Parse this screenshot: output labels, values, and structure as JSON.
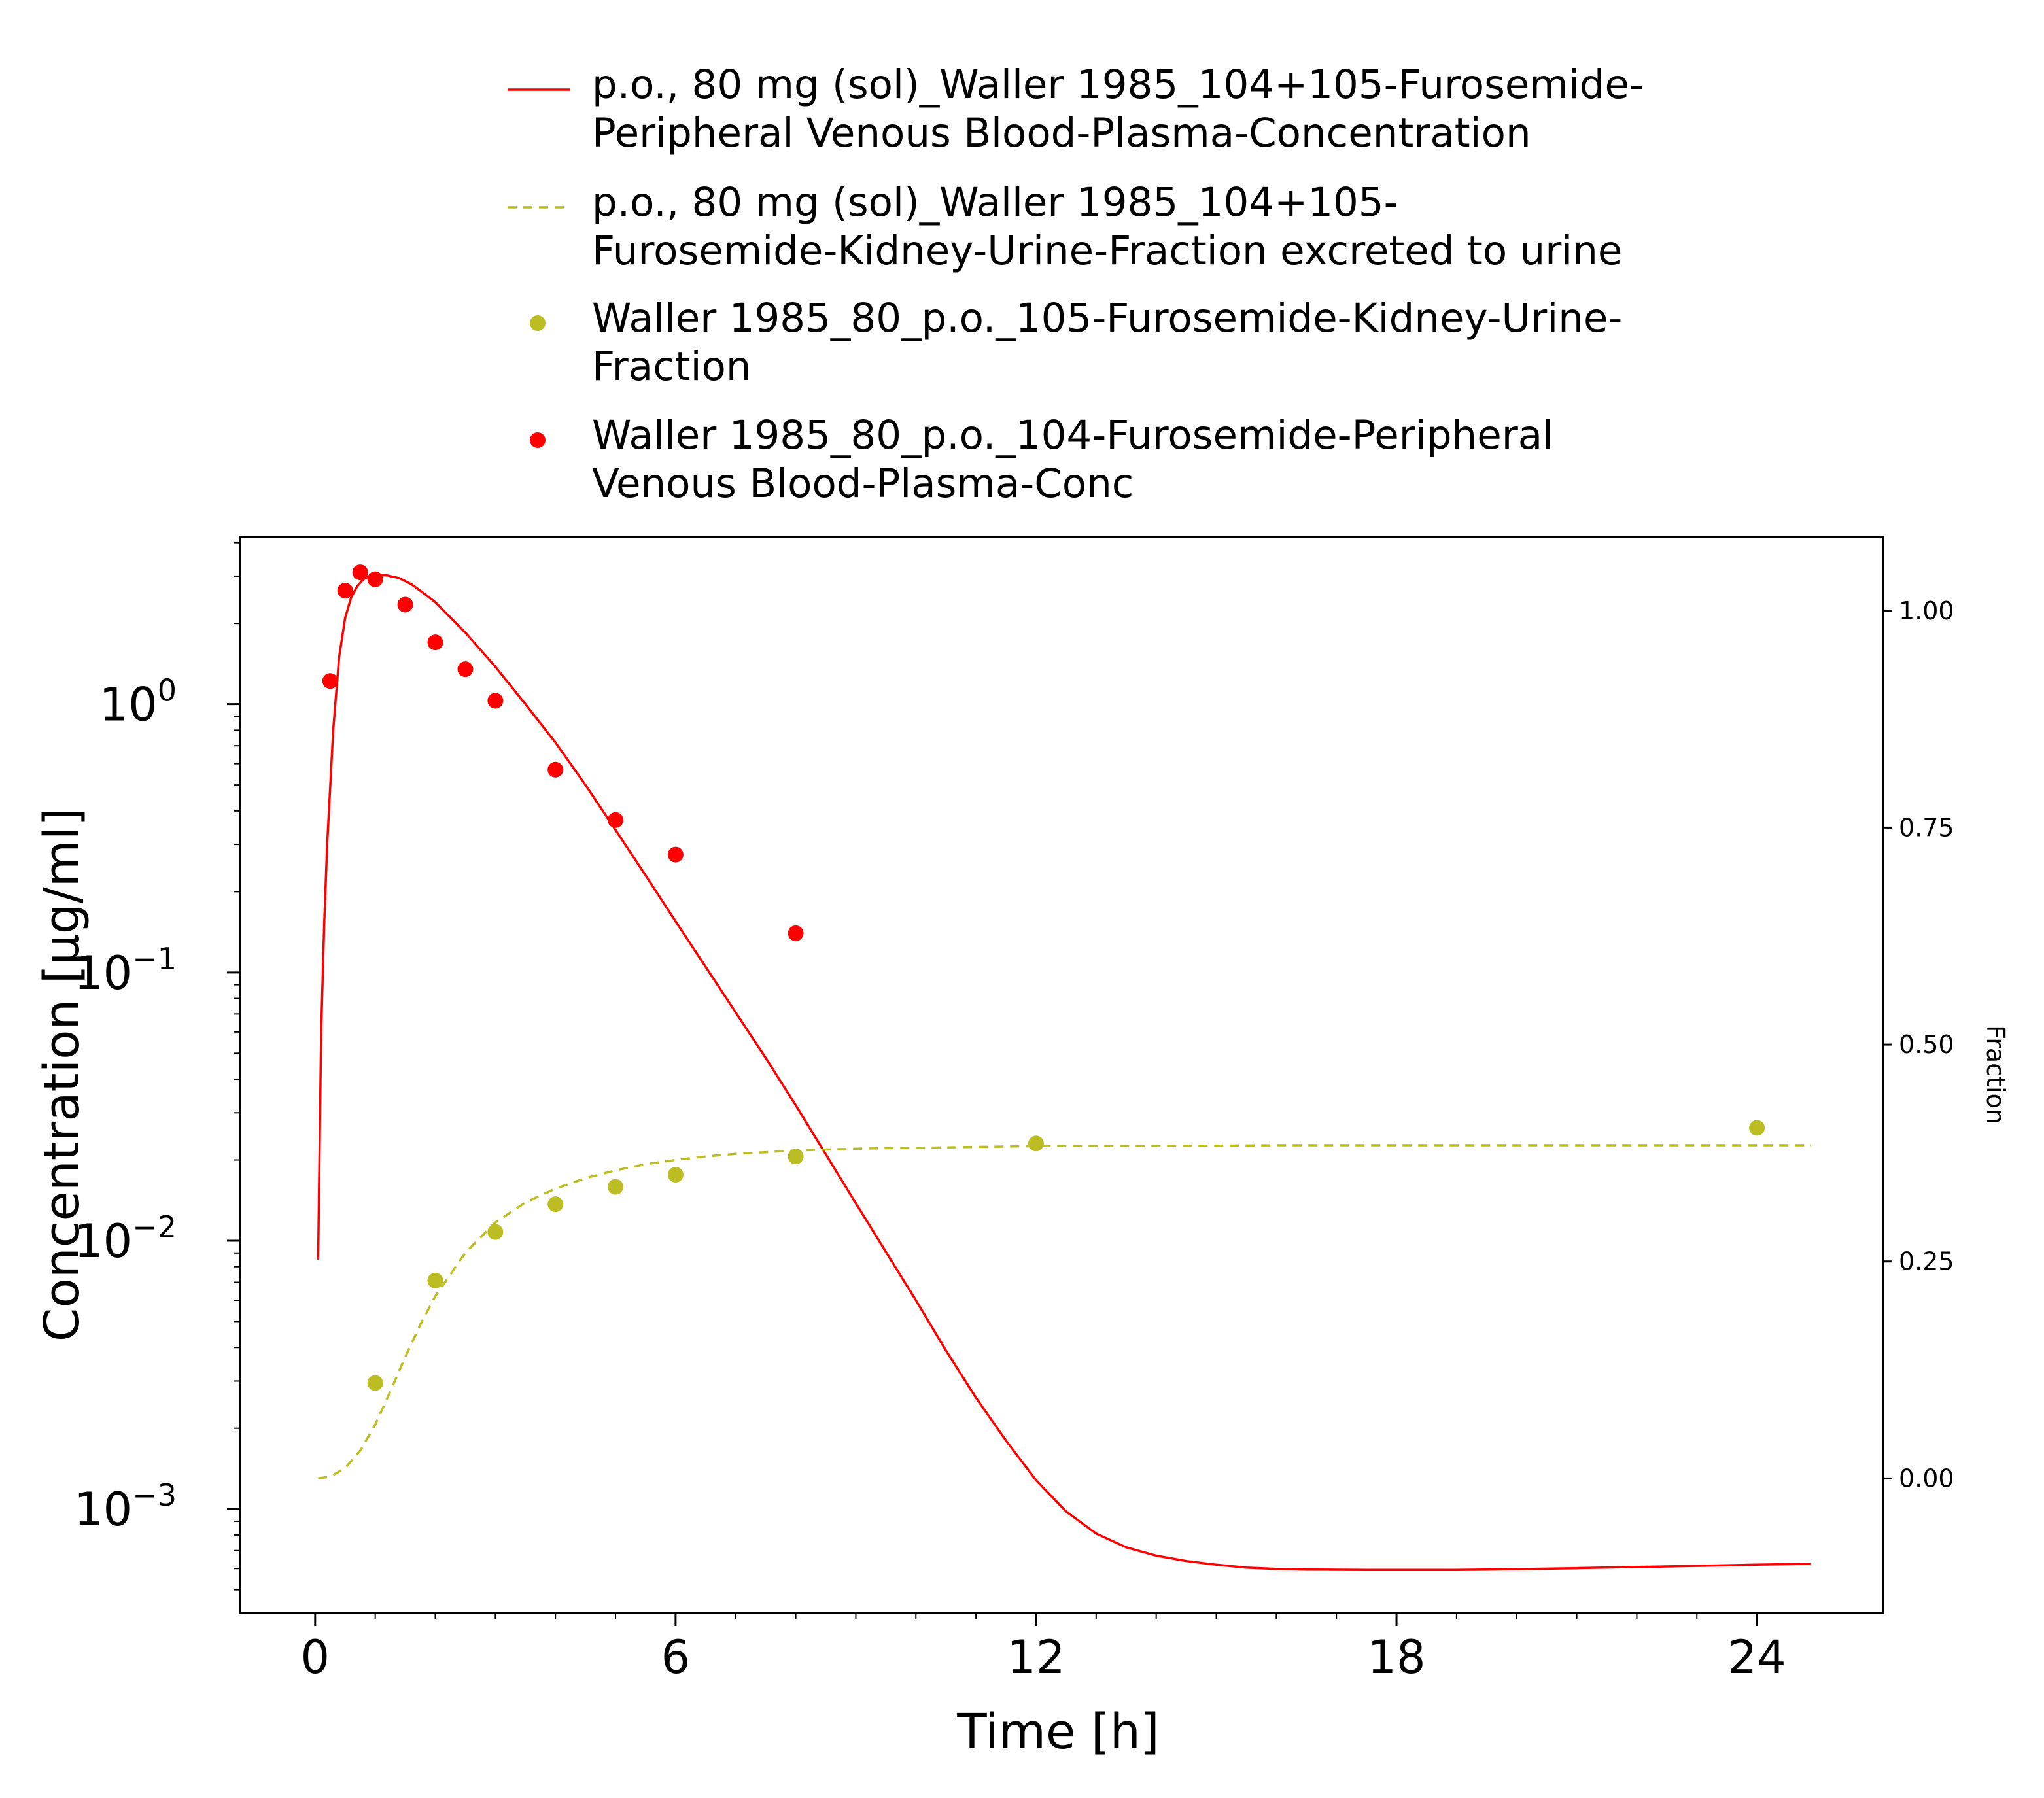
{
  "chart_data": {
    "type": "line",
    "xlabel": "Time [h]",
    "ylabel": "Concentration [µg/ml]",
    "y2label": "Fraction",
    "xlim": [
      -1.25,
      26.1
    ],
    "ylim": [
      0.00041,
      4.2
    ],
    "yscale": "log",
    "y2lim": [
      -0.155,
      1.085
    ],
    "y2scale": "linear",
    "grid": false,
    "legend_position": "top-center",
    "x_ticks": [
      {
        "value": 0,
        "label": "0"
      },
      {
        "value": 6,
        "label": "6"
      },
      {
        "value": 12,
        "label": "12"
      },
      {
        "value": 18,
        "label": "18"
      },
      {
        "value": 24,
        "label": "24"
      }
    ],
    "y_ticks": [
      {
        "value": 1,
        "base": "10",
        "exp": "0"
      },
      {
        "value": 0.1,
        "base": "10",
        "exp": "−1"
      },
      {
        "value": 0.01,
        "base": "10",
        "exp": "−2"
      },
      {
        "value": 0.001,
        "base": "10",
        "exp": "−3"
      }
    ],
    "y2_ticks": [
      {
        "value": 0.0,
        "label": "0.00"
      },
      {
        "value": 0.25,
        "label": "0.25"
      },
      {
        "value": 0.5,
        "label": "0.50"
      },
      {
        "value": 0.75,
        "label": "0.75"
      },
      {
        "value": 1.0,
        "label": "1.00"
      }
    ],
    "series": [
      {
        "name": "p.o., 80 mg (sol)_Waller 1985_104+105-Furosemide-Peripheral Venous Blood-Plasma-Concentration",
        "legend_lines": [
          "p.o., 80 mg (sol)_Waller 1985_104+105-Furosemide-",
          "Peripheral Venous Blood-Plasma-Concentration"
        ],
        "kind": "line",
        "style": "solid",
        "axis": "left",
        "color": "#ff0000",
        "x": [
          0.05,
          0.1,
          0.15,
          0.2,
          0.3,
          0.4,
          0.5,
          0.6,
          0.7,
          0.8,
          0.9,
          1.0,
          1.1,
          1.2,
          1.4,
          1.6,
          1.8,
          2.0,
          2.5,
          3.0,
          3.5,
          4.0,
          4.5,
          5.0,
          5.5,
          6.0,
          6.5,
          7.0,
          7.5,
          8.0,
          8.5,
          9.0,
          9.5,
          10.0,
          10.5,
          11.0,
          11.5,
          12.0,
          12.5,
          13.0,
          13.5,
          14.0,
          14.5,
          15.0,
          15.5,
          16.0,
          16.5,
          17.0,
          17.5,
          18.0,
          18.5,
          19.0,
          19.5,
          20.0,
          21.0,
          22.0,
          23.0,
          24.0,
          24.9
        ],
        "values": [
          0.0085,
          0.06,
          0.15,
          0.3,
          0.8,
          1.5,
          2.1,
          2.5,
          2.75,
          2.92,
          3.0,
          3.02,
          3.03,
          3.02,
          2.95,
          2.8,
          2.6,
          2.4,
          1.85,
          1.38,
          1.0,
          0.72,
          0.5,
          0.34,
          0.23,
          0.155,
          0.105,
          0.071,
          0.048,
          0.032,
          0.021,
          0.0138,
          0.0091,
          0.006,
          0.0039,
          0.0026,
          0.0018,
          0.00128,
          0.00098,
          0.00081,
          0.00072,
          0.00067,
          0.00064,
          0.00062,
          0.000605,
          0.000598,
          0.000595,
          0.000594,
          0.000593,
          0.000593,
          0.000593,
          0.000593,
          0.000595,
          0.000597,
          0.000602,
          0.000608,
          0.000614,
          0.00062,
          0.000625
        ]
      },
      {
        "name": "p.o., 80 mg (sol)_Waller 1985_104+105-Furosemide-Kidney-Urine-Fraction excreted to urine",
        "legend_lines": [
          "p.o., 80 mg (sol)_Waller 1985_104+105-",
          "Furosemide-Kidney-Urine-Fraction excreted to urine"
        ],
        "kind": "line",
        "style": "dashed",
        "axis": "right",
        "color": "#bcbd22",
        "x": [
          0.05,
          0.25,
          0.5,
          0.75,
          1.0,
          1.25,
          1.5,
          1.75,
          2.0,
          2.5,
          3.0,
          3.5,
          4.0,
          4.5,
          5.0,
          5.5,
          6.0,
          6.5,
          7.0,
          7.5,
          8.0,
          9.0,
          10.0,
          11.0,
          12.0,
          14.0,
          16.0,
          18.0,
          20.0,
          22.0,
          24.0,
          24.9
        ],
        "values": [
          0.0,
          0.002,
          0.012,
          0.032,
          0.062,
          0.1,
          0.14,
          0.177,
          0.21,
          0.26,
          0.295,
          0.318,
          0.334,
          0.346,
          0.355,
          0.362,
          0.367,
          0.371,
          0.374,
          0.376,
          0.378,
          0.38,
          0.381,
          0.382,
          0.383,
          0.383,
          0.384,
          0.384,
          0.384,
          0.384,
          0.384,
          0.384
        ]
      },
      {
        "name": "Waller 1985_80_p.o._105-Furosemide-Kidney-Urine-Fraction",
        "legend_lines": [
          "Waller 1985_80_p.o._105-Furosemide-Kidney-Urine-",
          "Fraction"
        ],
        "kind": "scatter",
        "axis": "right",
        "color": "#bcbd22",
        "x": [
          1.0,
          2.0,
          3.0,
          4.0,
          5.0,
          6.0,
          8.0,
          12.0,
          24.0
        ],
        "values": [
          0.11,
          0.228,
          0.284,
          0.316,
          0.336,
          0.35,
          0.371,
          0.386,
          0.404
        ]
      },
      {
        "name": "Waller 1985_80_p.o._104-Furosemide-Peripheral Venous Blood-Plasma-Conc",
        "legend_lines": [
          "Waller 1985_80_p.o._104-Furosemide-Peripheral",
          "Venous Blood-Plasma-Conc"
        ],
        "kind": "scatter",
        "axis": "left",
        "color": "#ff0000",
        "x": [
          0.25,
          0.5,
          0.75,
          1.0,
          1.5,
          2.0,
          2.5,
          3.0,
          4.0,
          5.0,
          6.0,
          8.0
        ],
        "values": [
          1.22,
          2.65,
          3.1,
          2.92,
          2.35,
          1.7,
          1.35,
          1.03,
          0.57,
          0.37,
          0.275,
          0.14
        ]
      }
    ]
  }
}
